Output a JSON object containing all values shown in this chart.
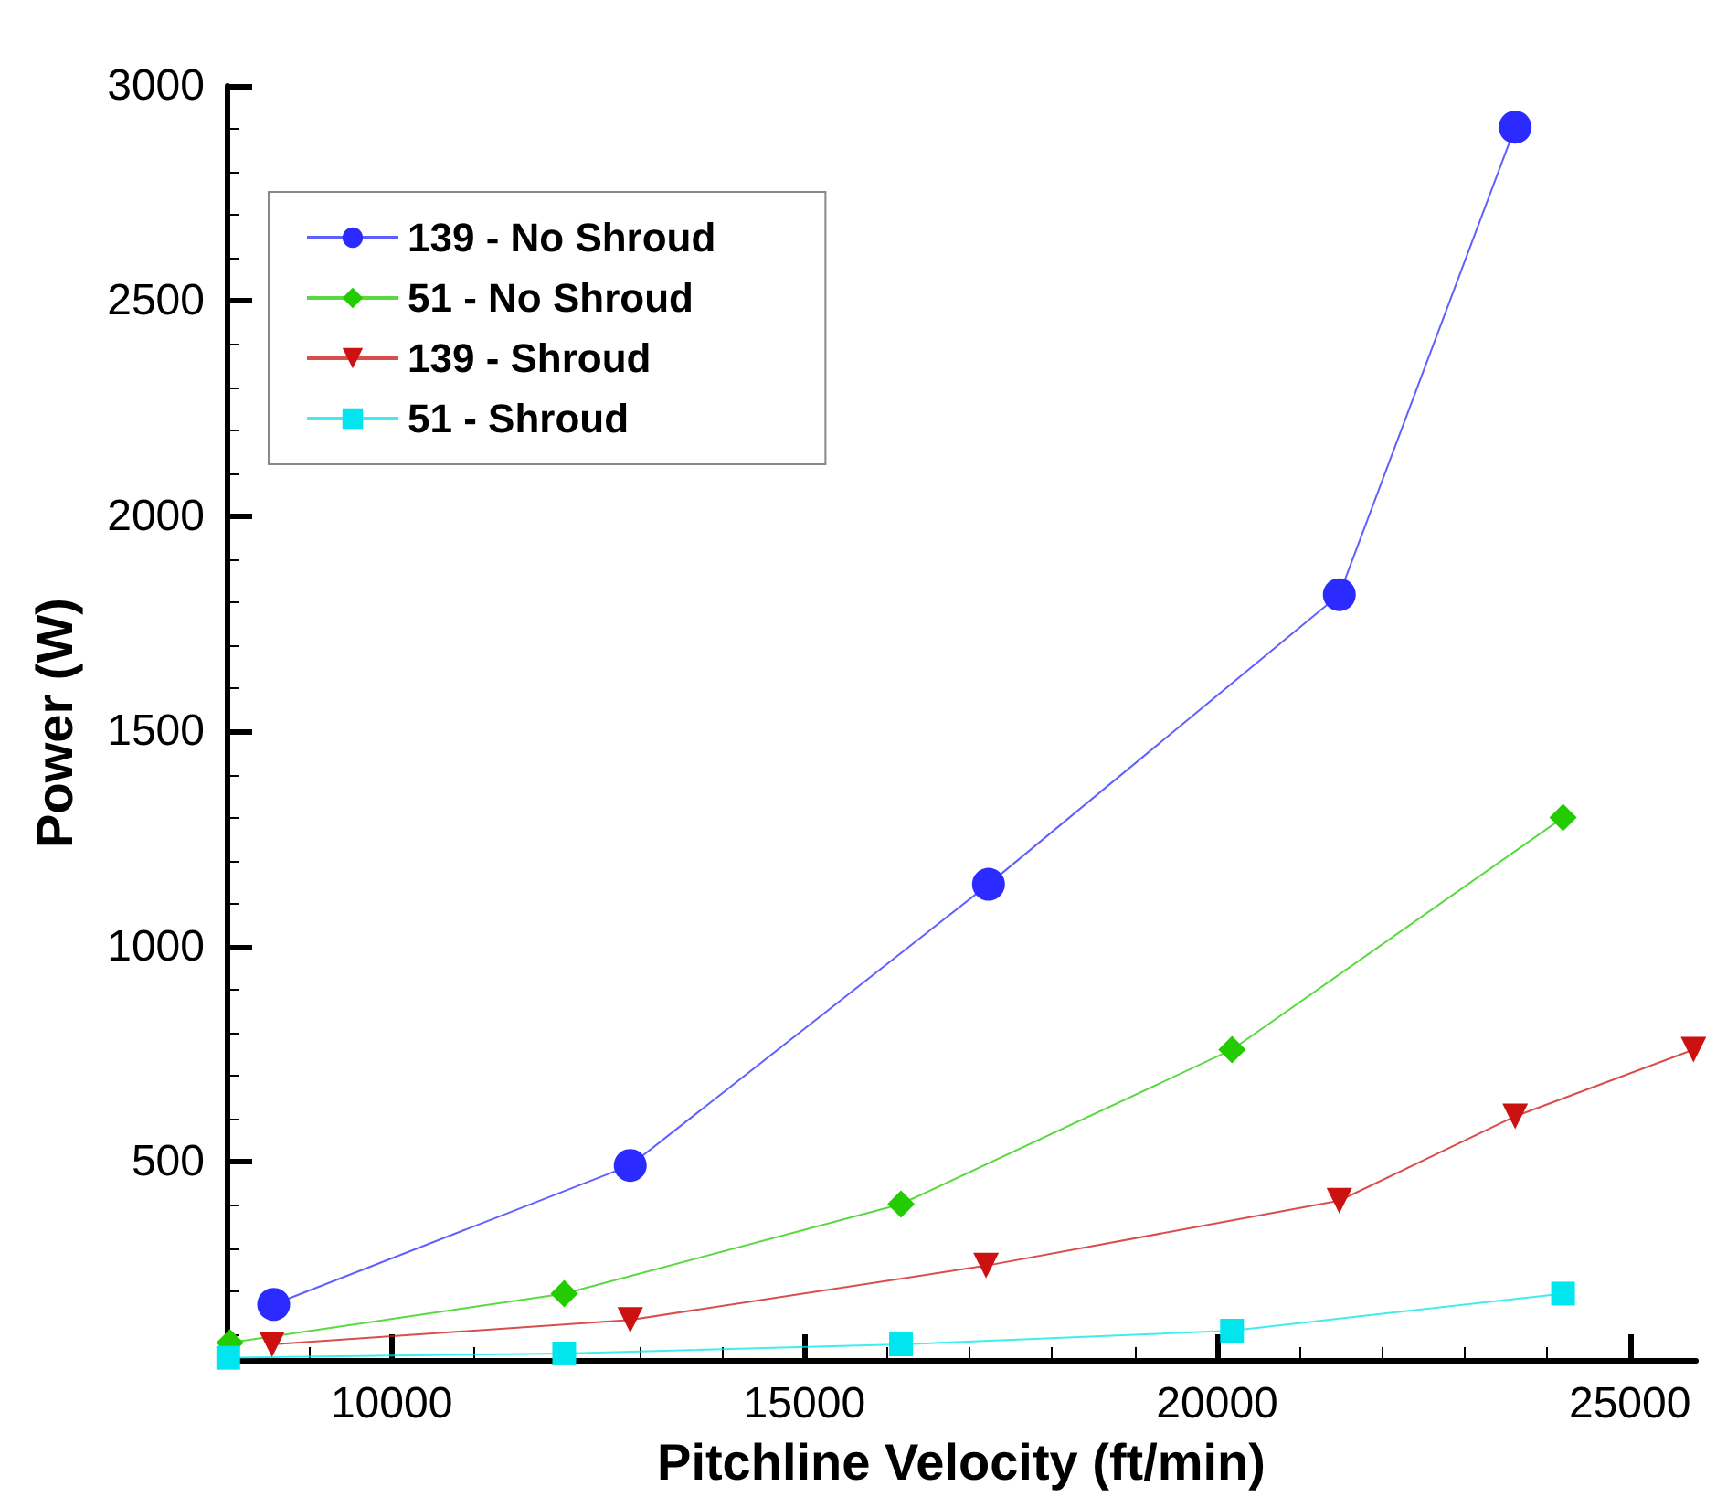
{
  "chart_data": {
    "type": "line",
    "xlabel": "Pitchline Velocity (ft/min)",
    "ylabel": "Power (W)",
    "xlim": [
      8000,
      25800
    ],
    "xticks": [
      10000,
      15000,
      20000,
      25000
    ],
    "ylim": [
      40,
      3000
    ],
    "yticks": [
      500,
      1000,
      1500,
      2000,
      2500,
      3000
    ],
    "grid": false,
    "legend": "top left",
    "series": [
      {
        "name": "139 - No Shroud",
        "color": "#2b2bff",
        "marker": "circle",
        "x": [
          8570,
          12890,
          17230,
          21480,
          23610
        ],
        "values": [
          169,
          492,
          1145,
          1818,
          2904
        ]
      },
      {
        "name": "51 - No Shroud",
        "color": "#22cc00",
        "marker": "diamond",
        "x": [
          8040,
          12090,
          16170,
          20180,
          24190
        ],
        "values": [
          80,
          194,
          402,
          761,
          1300
        ]
      },
      {
        "name": "139 - Shroud",
        "color": "#cc1111",
        "marker": "triangle",
        "x": [
          8550,
          12890,
          17200,
          21480,
          23610,
          25770
        ],
        "values": [
          76,
          133,
          259,
          410,
          606,
          761
        ]
      },
      {
        "name": "51 - Shroud",
        "color": "#00e5ee",
        "marker": "square",
        "x": [
          8020,
          12090,
          16170,
          20180,
          24190
        ],
        "values": [
          45,
          55,
          76,
          108,
          194
        ]
      }
    ]
  }
}
